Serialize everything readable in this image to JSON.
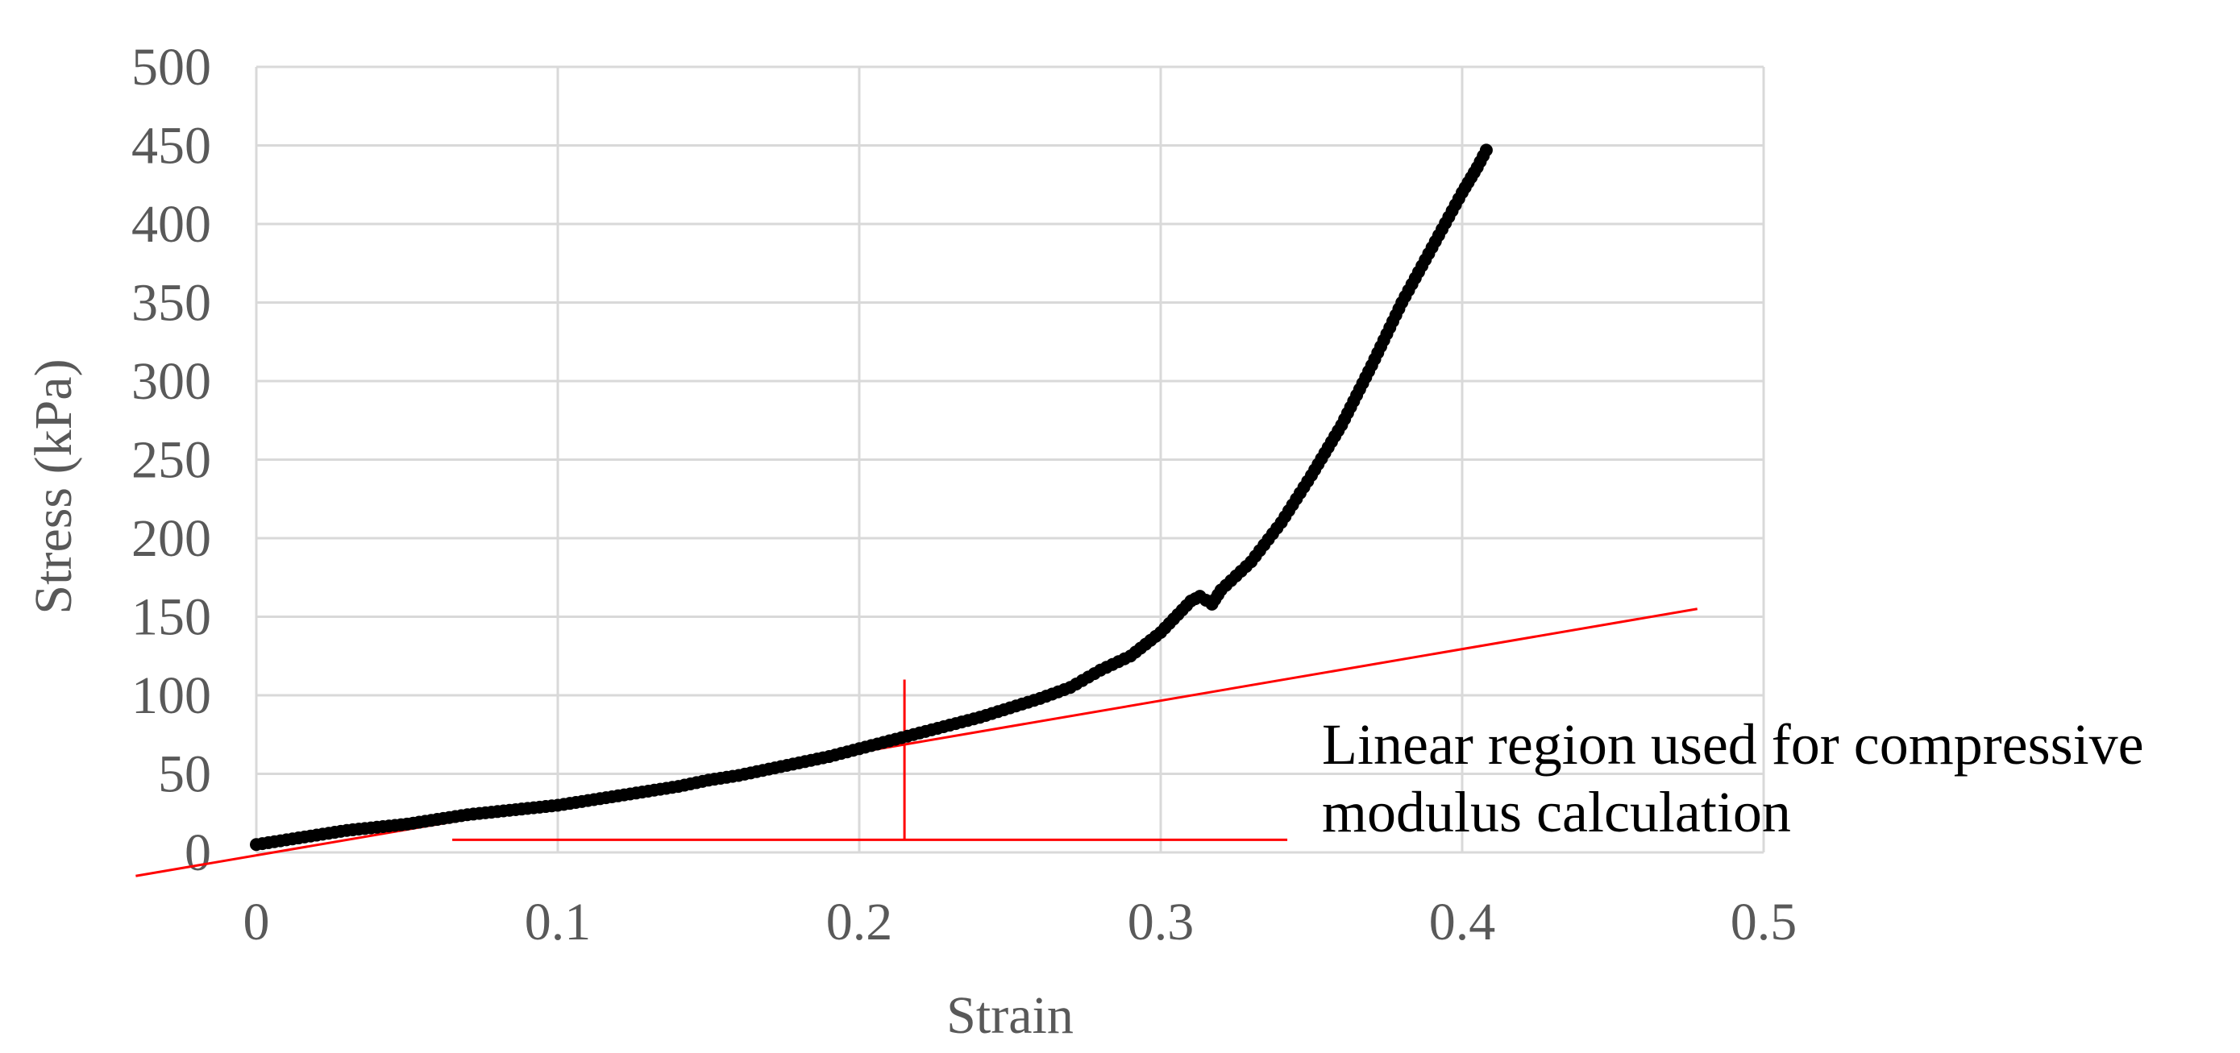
{
  "chart_data": {
    "type": "scatter",
    "title": "",
    "xlabel": "Strain",
    "ylabel": "Stress (kPa)",
    "xlim": [
      0,
      0.5
    ],
    "ylim": [
      0,
      500
    ],
    "x_ticks": [
      "0",
      "0.1",
      "0.2",
      "0.3",
      "0.4",
      "0.5"
    ],
    "y_ticks": [
      "0",
      "50",
      "100",
      "150",
      "200",
      "250",
      "300",
      "350",
      "400",
      "450",
      "500"
    ],
    "grid": true,
    "legend": "none",
    "colors": {
      "points": "#000000",
      "annotation": "#ff0000",
      "grid": "#d9d9d9",
      "text": "#595959"
    },
    "series": [
      {
        "x": [
          0.0,
          0.01,
          0.02,
          0.03,
          0.04,
          0.05,
          0.06,
          0.07,
          0.08,
          0.09,
          0.1,
          0.11,
          0.12,
          0.13,
          0.14,
          0.15,
          0.16,
          0.17,
          0.18,
          0.19,
          0.2,
          0.21,
          0.22,
          0.23,
          0.24,
          0.25,
          0.26,
          0.27,
          0.28,
          0.29,
          0.3,
          0.31,
          0.313,
          0.317,
          0.32,
          0.33,
          0.34,
          0.35,
          0.36,
          0.37,
          0.38,
          0.39,
          0.4,
          0.405,
          0.408
        ],
        "y": [
          5,
          8,
          11,
          14,
          16,
          18,
          21,
          24,
          26,
          28,
          30,
          33,
          36,
          39,
          42,
          46,
          49,
          53,
          57,
          61,
          66,
          71,
          76,
          81,
          86,
          92,
          98,
          105,
          116,
          125,
          140,
          160,
          163,
          158,
          167,
          185,
          210,
          240,
          272,
          310,
          350,
          385,
          420,
          436,
          447
        ]
      }
    ],
    "annotations": {
      "fit_line": {
        "x": [
          -0.04,
          0.478
        ],
        "y": [
          -15,
          155
        ]
      },
      "vertical_marker": {
        "x": 0.215,
        "y": [
          8,
          110
        ]
      },
      "horizontal_marker": {
        "x": [
          0.065,
          0.342
        ],
        "y": 8
      },
      "text_lines": [
        "Linear region used for compressive",
        "modulus calculation"
      ]
    }
  }
}
